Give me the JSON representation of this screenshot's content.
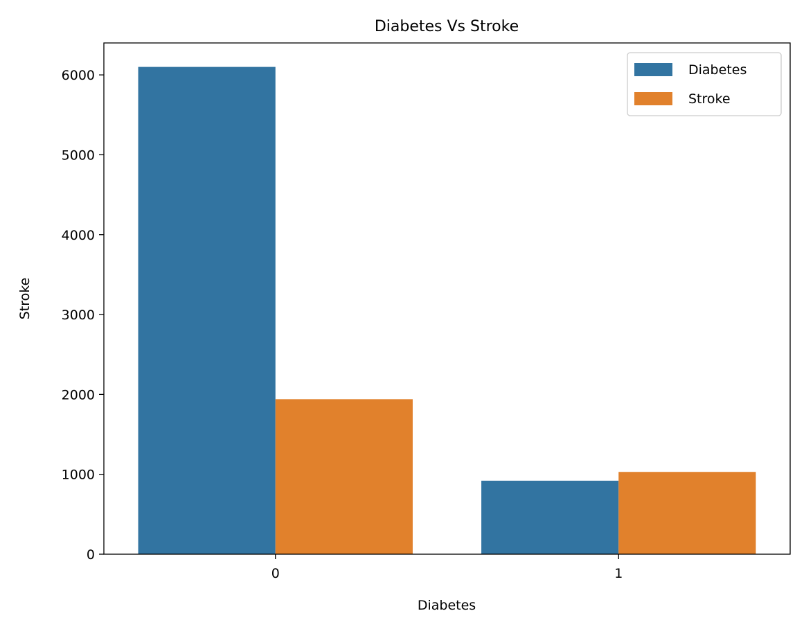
{
  "chart_data": {
    "type": "bar",
    "title": "Diabetes Vs Stroke",
    "xlabel": "Diabetes",
    "ylabel": "Stroke",
    "categories": [
      "0",
      "1"
    ],
    "ylim": [
      0,
      6400
    ],
    "yticks": [
      0,
      1000,
      2000,
      3000,
      4000,
      5000,
      6000
    ],
    "series": [
      {
        "name": "Diabetes",
        "color": "#3274a1",
        "values": [
          6100,
          920
        ]
      },
      {
        "name": "Stroke",
        "color": "#e1812c",
        "values": [
          1940,
          1030
        ]
      }
    ],
    "legend_position": "top-right",
    "grid": false
  }
}
